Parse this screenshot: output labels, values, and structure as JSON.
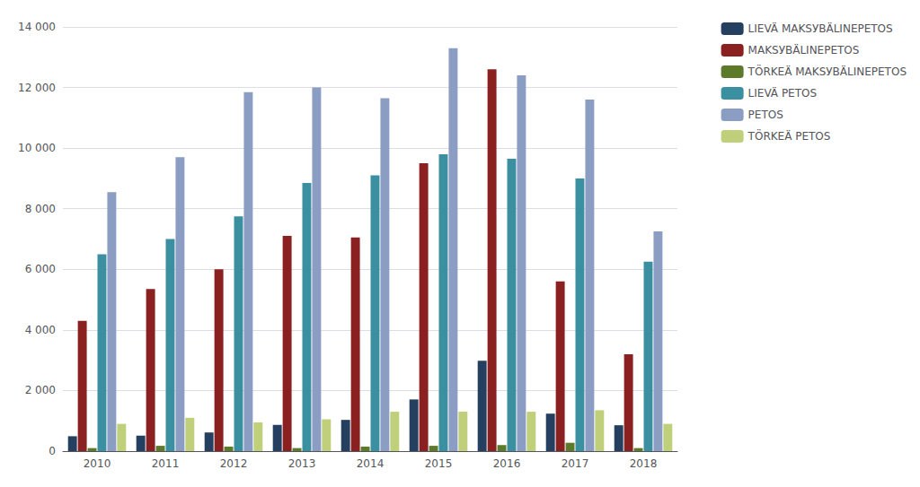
{
  "chart_data": {
    "type": "bar",
    "categories": [
      "2010",
      "2011",
      "2012",
      "2013",
      "2014",
      "2015",
      "2016",
      "2017",
      "2018"
    ],
    "series": [
      {
        "name": "LIEVÄ MAKSУВÄLINEPETOS",
        "color": "#243F60",
        "values": [
          492,
          511,
          616,
          866,
          1031,
          1706,
          2980,
          1237,
          854
        ]
      },
      {
        "name": "MAKSУВÄLINEPETOS",
        "color": "#8B2020",
        "values": [
          4300,
          5350,
          6000,
          7100,
          7050,
          9500,
          12600,
          5600,
          3200
        ]
      },
      {
        "name": "TÖRKEÄ MAKSУВÄLINEPETOS",
        "color": "#5C7A2A",
        "values": [
          100,
          175,
          150,
          100,
          150,
          175,
          200,
          275,
          100
        ]
      },
      {
        "name": "LIEVÄ PETOS",
        "color": "#3A8FA0",
        "values": [
          6500,
          7000,
          7750,
          8850,
          9100,
          9800,
          9650,
          9000,
          6250
        ]
      },
      {
        "name": "PETOS",
        "color": "#8B9DC3",
        "values": [
          8550,
          9700,
          11850,
          12000,
          11650,
          13300,
          12400,
          11600,
          7250
        ]
      },
      {
        "name": "TÖRKEÄ PETOS",
        "color": "#BFCF7A",
        "values": [
          900,
          1100,
          950,
          1050,
          1300,
          1300,
          1300,
          1350,
          900
        ]
      }
    ],
    "ylim": [
      0,
      14000
    ],
    "yticks": [
      0,
      {
        "value": 2000,
        "label": "2 000"
      },
      {
        "value": 4000,
        "label": "4 000"
      },
      {
        "value": 6000,
        "label": "6 000"
      },
      {
        "value": 8000,
        "label": "8 000"
      },
      {
        "value": 10000,
        "label": "10 000"
      },
      {
        "value": 12000,
        "label": "12 000"
      },
      {
        "value": 14000,
        "label": "14 000"
      }
    ],
    "grid": true,
    "legend": "upper right"
  }
}
